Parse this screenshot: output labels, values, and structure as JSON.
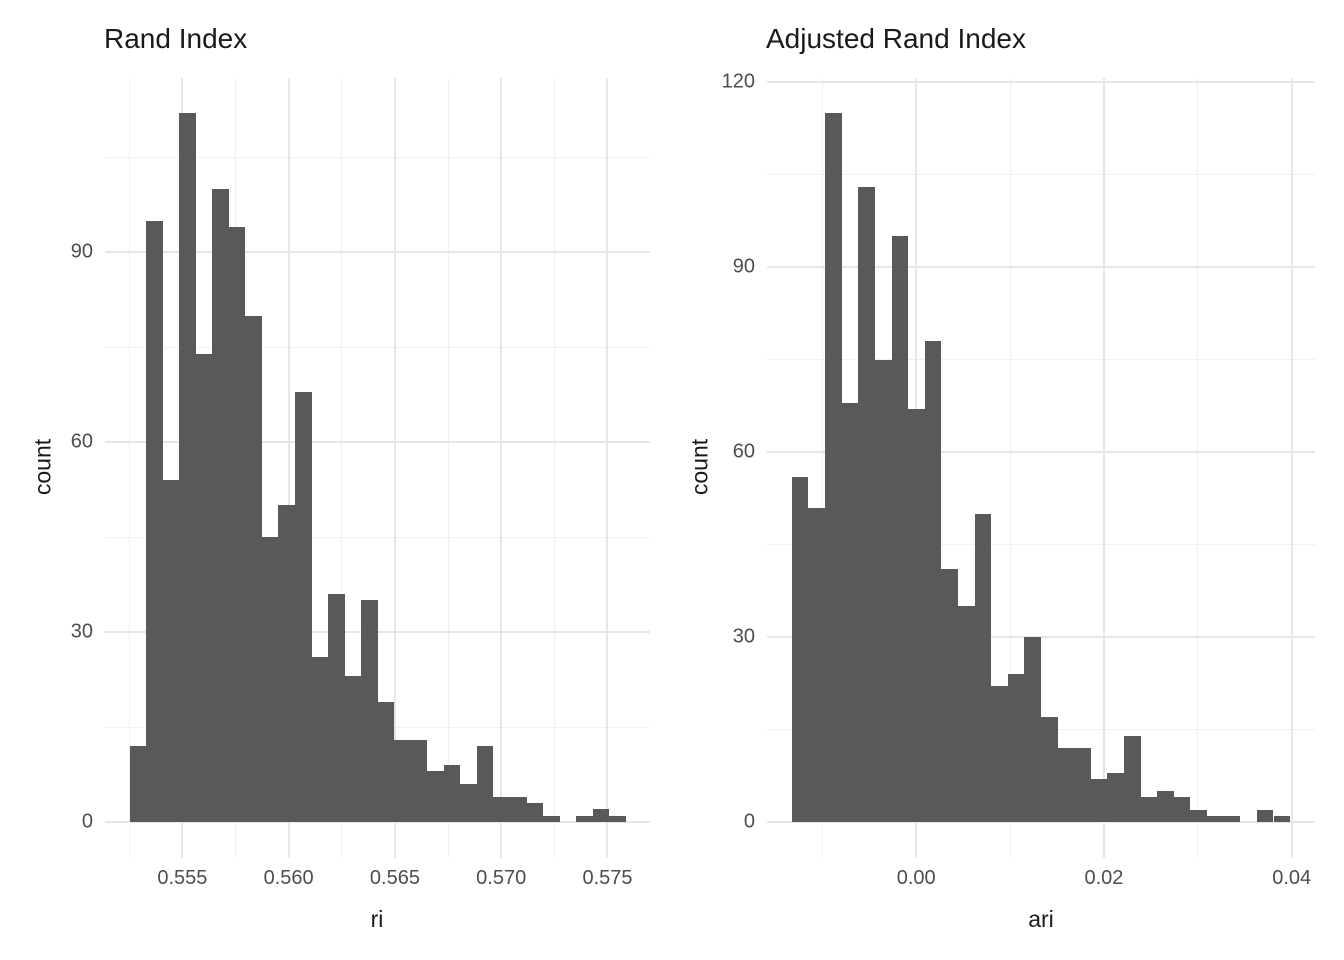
{
  "figure": {
    "background_color": "#ffffff",
    "bar_color": "#595959",
    "gridline_major_color": "#e6e6e6",
    "gridline_minor_color": "#f0f0f0",
    "tick_label_color": "#4d4d4d",
    "title_color": "#1a1a1a"
  },
  "chart_data": [
    {
      "type": "bar",
      "subtype": "histogram",
      "title": "Rand Index",
      "xlabel": "ri",
      "ylabel": "count",
      "bins": {
        "start": 0.55252,
        "width": 0.000778
      },
      "counts": [
        12,
        95,
        54,
        112,
        74,
        100,
        94,
        80,
        45,
        50,
        68,
        26,
        36,
        23,
        35,
        19,
        13,
        13,
        8,
        9,
        6,
        12,
        4,
        4,
        3,
        1,
        0,
        1,
        2,
        1
      ],
      "total_count": 1000,
      "x_ticks": [
        {
          "value": 0.555,
          "label": "0.555"
        },
        {
          "value": 0.56,
          "label": "0.560"
        },
        {
          "value": 0.565,
          "label": "0.565"
        },
        {
          "value": 0.57,
          "label": "0.570"
        },
        {
          "value": 0.575,
          "label": "0.575"
        }
      ],
      "x_minor": [
        0.5525,
        0.5575,
        0.5625,
        0.5675,
        0.5725
      ],
      "y_ticks": [
        {
          "value": 0,
          "label": "0"
        },
        {
          "value": 30,
          "label": "30"
        },
        {
          "value": 60,
          "label": "60"
        },
        {
          "value": 90,
          "label": "90"
        }
      ],
      "y_minor": [
        15,
        45,
        75,
        105
      ],
      "x_domain": [
        0.55136,
        0.577
      ],
      "y_domain": [
        -5.6,
        117.6
      ],
      "grid": "on",
      "legend": "none"
    },
    {
      "type": "bar",
      "subtype": "histogram",
      "title": "Adjusted Rand Index",
      "xlabel": "ari",
      "ylabel": "count",
      "bins": {
        "start": -0.01324,
        "width": 0.001769
      },
      "counts": [
        56,
        51,
        115,
        68,
        103,
        75,
        95,
        67,
        78,
        41,
        35,
        50,
        22,
        24,
        30,
        17,
        12,
        12,
        7,
        8,
        14,
        4,
        5,
        4,
        2,
        1,
        1,
        0,
        2,
        1
      ],
      "total_count": 1000,
      "x_ticks": [
        {
          "value": 0.0,
          "label": "0.00"
        },
        {
          "value": 0.02,
          "label": "0.02"
        },
        {
          "value": 0.04,
          "label": "0.04"
        }
      ],
      "x_minor": [
        -0.01,
        0.01,
        0.03
      ],
      "y_ticks": [
        {
          "value": 0,
          "label": "0"
        },
        {
          "value": 30,
          "label": "30"
        },
        {
          "value": 60,
          "label": "60"
        },
        {
          "value": 90,
          "label": "90"
        },
        {
          "value": 120,
          "label": "120"
        }
      ],
      "y_minor": [
        15,
        45,
        75,
        105
      ],
      "x_domain": [
        -0.01589,
        0.04248
      ],
      "y_domain": [
        -5.75,
        120.75
      ],
      "grid": "on",
      "legend": "none"
    }
  ]
}
